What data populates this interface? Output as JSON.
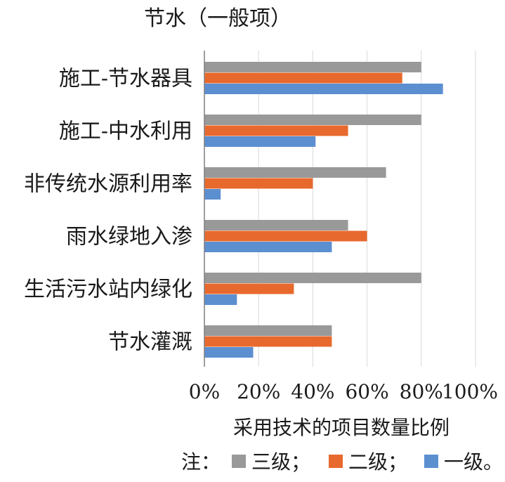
{
  "chart_data": {
    "type": "bar",
    "orientation": "horizontal",
    "title": "节水（一般项）",
    "xlabel": "采用技术的项目数量比例",
    "ylabel": "",
    "xlim": [
      0,
      100
    ],
    "x_ticks": [
      "0%",
      "20%",
      "40%",
      "60%",
      "80%",
      "100%"
    ],
    "grid": "vertical",
    "categories": [
      "施工-节水器具",
      "施工-中水利用",
      "非传统水源利用率",
      "雨水绿地入渗",
      "生活污水站内绿化",
      "节水灌溉"
    ],
    "series": [
      {
        "name": "三级",
        "color": "#999999",
        "values": [
          80,
          80,
          67,
          53,
          80,
          47
        ]
      },
      {
        "name": "二级",
        "color": "#E8692D",
        "values": [
          73,
          53,
          40,
          60,
          33,
          47
        ]
      },
      {
        "name": "一级",
        "color": "#5B8FD0",
        "values": [
          88,
          41,
          6,
          47,
          12,
          18
        ]
      }
    ],
    "legend": {
      "position": "bottom",
      "prefix": "注：",
      "entries": [
        "三级；",
        "二级；",
        "一级。"
      ]
    }
  }
}
